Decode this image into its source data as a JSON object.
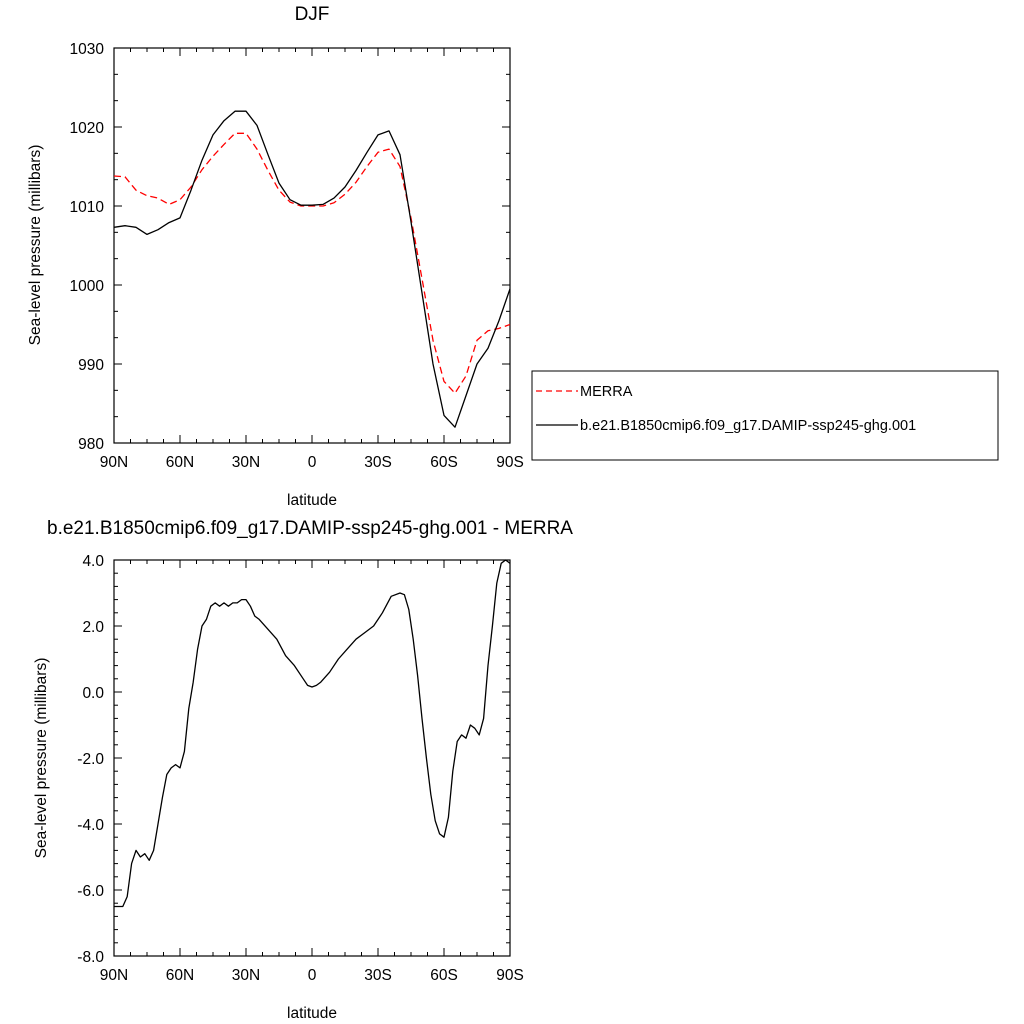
{
  "chart_data": [
    {
      "type": "line",
      "title": "DJF",
      "xlabel": "latitude",
      "ylabel": "Sea-level pressure (millibars)",
      "xlim": [
        90,
        -90
      ],
      "ylim": [
        980,
        1030
      ],
      "xticks": [
        "90N",
        "60N",
        "30N",
        "0",
        "30S",
        "60S",
        "90S"
      ],
      "yticks": [
        "980",
        "990",
        "1000",
        "1010",
        "1020",
        "1030"
      ],
      "legend_position": "right",
      "grid": false,
      "series": [
        {
          "name": "MERRA",
          "color": "#ff0000",
          "style": "dashed",
          "x": [
            90,
            85,
            80,
            75,
            70,
            65,
            60,
            55,
            50,
            45,
            40,
            35,
            30,
            25,
            20,
            15,
            10,
            5,
            0,
            -5,
            -10,
            -15,
            -20,
            -25,
            -30,
            -35,
            -40,
            -45,
            -50,
            -55,
            -60,
            -65,
            -70,
            -75,
            -80,
            -85,
            -90
          ],
          "y": [
            1013.8,
            1013.7,
            1012.0,
            1011.3,
            1011.0,
            1010.2,
            1010.8,
            1012.4,
            1014.6,
            1016.3,
            1017.8,
            1019.2,
            1019.2,
            1017.2,
            1014.5,
            1012.0,
            1010.5,
            1010.0,
            1010.0,
            1010.0,
            1010.4,
            1011.5,
            1013.0,
            1015.0,
            1016.8,
            1017.2,
            1015.0,
            1008.5,
            1000.8,
            993.0,
            987.8,
            986.3,
            988.5,
            993.0,
            994.2,
            994.5,
            995.0
          ]
        },
        {
          "name": "b.e21.B1850cmip6.f09_g17.DAMIP-ssp245-ghg.001",
          "color": "#000000",
          "style": "solid",
          "x": [
            90,
            85,
            80,
            75,
            70,
            65,
            60,
            55,
            50,
            45,
            40,
            35,
            30,
            25,
            20,
            15,
            10,
            5,
            0,
            -5,
            -10,
            -15,
            -20,
            -25,
            -30,
            -35,
            -40,
            -45,
            -50,
            -55,
            -60,
            -65,
            -70,
            -75,
            -80,
            -85,
            -90
          ],
          "y": [
            1007.3,
            1007.5,
            1007.3,
            1006.4,
            1007.0,
            1007.9,
            1008.5,
            1012.0,
            1015.8,
            1019.0,
            1020.8,
            1022.0,
            1022.0,
            1020.2,
            1016.5,
            1012.9,
            1010.8,
            1010.1,
            1010.1,
            1010.2,
            1011.0,
            1012.4,
            1014.5,
            1016.8,
            1019.0,
            1019.5,
            1016.5,
            1008.0,
            999.0,
            990.0,
            983.5,
            982.0,
            986.0,
            990.0,
            992.0,
            995.5,
            999.5
          ]
        }
      ]
    },
    {
      "type": "line",
      "title": "b.e21.B1850cmip6.f09_g17.DAMIP-ssp245-ghg.001 - MERRA",
      "xlabel": "latitude",
      "ylabel": "Sea-level pressure (millibars)",
      "xlim": [
        90,
        -90
      ],
      "ylim": [
        -8,
        4
      ],
      "xticks": [
        "90N",
        "60N",
        "30N",
        "0",
        "30S",
        "60S",
        "90S"
      ],
      "yticks": [
        "-8.0",
        "-6.0",
        "-4.0",
        "-2.0",
        "0.0",
        "2.0",
        "4.0"
      ],
      "grid": false,
      "series": [
        {
          "color": "#000000",
          "style": "solid",
          "x": [
            90,
            86,
            84,
            82,
            80,
            78,
            76,
            74,
            72,
            70,
            68,
            66,
            64,
            62,
            60,
            58,
            56,
            54,
            52,
            50,
            48,
            46,
            44,
            42,
            40,
            38,
            36,
            34,
            32,
            30,
            28,
            26,
            24,
            20,
            16,
            12,
            8,
            4,
            2,
            0,
            -2,
            -4,
            -8,
            -12,
            -16,
            -20,
            -24,
            -28,
            -32,
            -36,
            -40,
            -42,
            -44,
            -46,
            -48,
            -50,
            -52,
            -54,
            -56,
            -58,
            -60,
            -62,
            -64,
            -66,
            -68,
            -70,
            -72,
            -74,
            -76,
            -78,
            -80,
            -82,
            -84,
            -86,
            -88,
            -90
          ],
          "y": [
            -6.5,
            -6.5,
            -6.2,
            -5.2,
            -4.8,
            -5.0,
            -4.9,
            -5.1,
            -4.8,
            -4.0,
            -3.2,
            -2.5,
            -2.3,
            -2.2,
            -2.3,
            -1.8,
            -0.5,
            0.3,
            1.3,
            2.0,
            2.2,
            2.6,
            2.7,
            2.6,
            2.7,
            2.6,
            2.7,
            2.7,
            2.8,
            2.8,
            2.6,
            2.3,
            2.2,
            1.9,
            1.6,
            1.1,
            0.8,
            0.4,
            0.2,
            0.15,
            0.2,
            0.3,
            0.6,
            1.0,
            1.3,
            1.6,
            1.8,
            2.0,
            2.4,
            2.9,
            3.0,
            2.95,
            2.5,
            1.6,
            0.5,
            -0.8,
            -2.0,
            -3.1,
            -3.9,
            -4.3,
            -4.4,
            -3.8,
            -2.4,
            -1.5,
            -1.3,
            -1.4,
            -1.0,
            -1.1,
            -1.3,
            -0.8,
            0.8,
            2.0,
            3.3,
            3.9,
            4.0,
            3.9
          ]
        }
      ]
    }
  ]
}
